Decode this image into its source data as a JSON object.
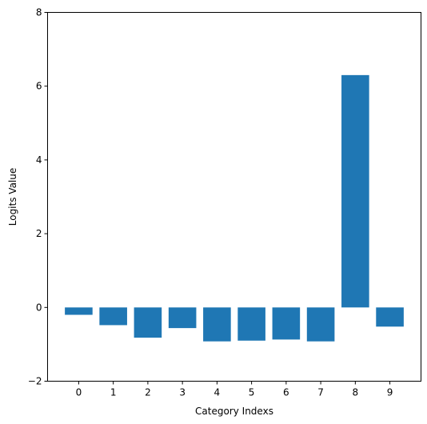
{
  "chart_data": {
    "type": "bar",
    "categories": [
      "0",
      "1",
      "2",
      "3",
      "4",
      "5",
      "6",
      "7",
      "8",
      "9"
    ],
    "values": [
      -0.2,
      -0.48,
      -0.82,
      -0.56,
      -0.92,
      -0.9,
      -0.87,
      -0.92,
      6.3,
      -0.52
    ],
    "title": "",
    "xlabel": "Category Indexs",
    "ylabel": "Logits Value",
    "ylim": [
      -2,
      8
    ],
    "yticks": [
      -2,
      0,
      2,
      4,
      6,
      8
    ],
    "grid": false,
    "bar_color": "#1f77b4"
  }
}
